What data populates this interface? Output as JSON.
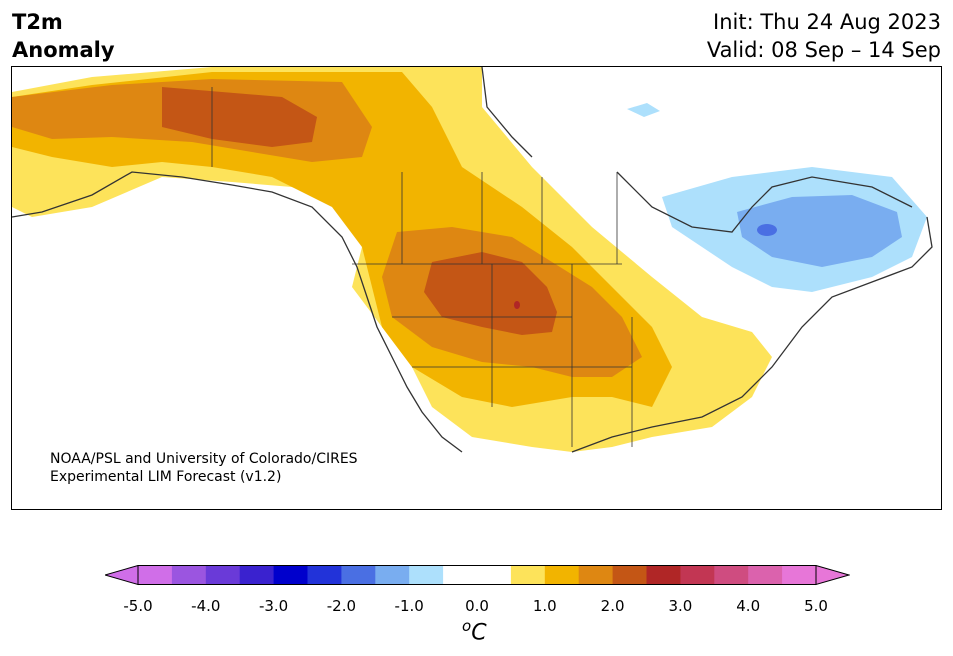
{
  "header": {
    "title_line1": "T2m",
    "title_line2": "Anomaly",
    "init": "Init: Thu 24 Aug 2023",
    "valid": "Valid: 08 Sep – 14 Sep"
  },
  "map": {
    "credit_line1": "NOAA/PSL and University of Colorado/CIRES",
    "credit_line2": "Experimental LIM Forecast (v1.2)",
    "region": "North America"
  },
  "colorbar": {
    "unit": "C",
    "unit_prefix": "o",
    "tick_labels": [
      "-5.0",
      "-4.0",
      "-3.0",
      "-2.0",
      "-1.0",
      "0.0",
      "1.0",
      "2.0",
      "3.0",
      "4.0",
      "5.0"
    ],
    "min": -5.0,
    "max": 5.0,
    "step": 0.5,
    "colors": [
      "#d06ee8",
      "#9b55e0",
      "#6a3ad8",
      "#3a22cf",
      "#0000cc",
      "#2233d9",
      "#4a6fe3",
      "#79adf0",
      "#ade0fc",
      "#ffffff",
      "#ffffff",
      "#fde35a",
      "#f2b400",
      "#de8712",
      "#c45615",
      "#b02626",
      "#c23653",
      "#cf4c80",
      "#db62ad",
      "#e776d8"
    ],
    "extend_low_color": "#d06ee8",
    "extend_high_color": "#e776d8"
  }
}
